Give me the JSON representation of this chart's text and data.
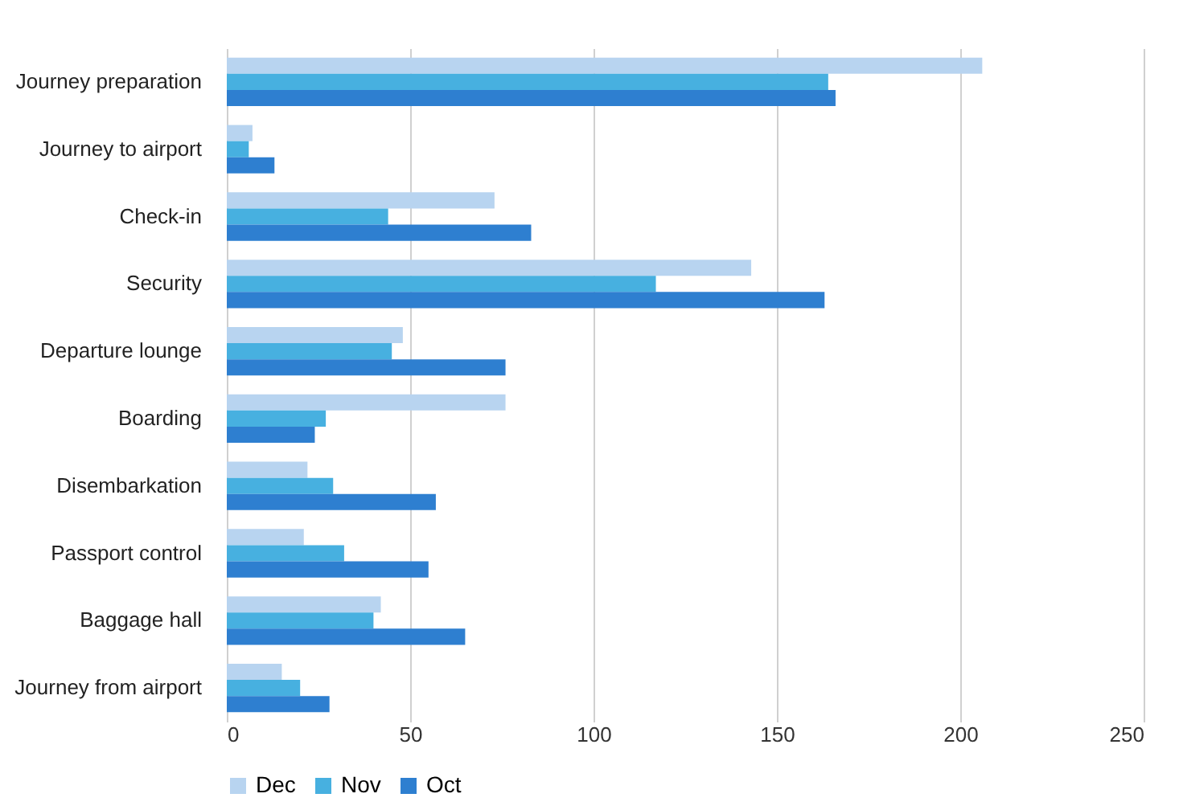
{
  "chart_data": {
    "type": "bar",
    "orientation": "horizontal",
    "categories": [
      "Journey preparation",
      "Journey to airport",
      "Check-in",
      "Security",
      "Departure lounge",
      "Boarding",
      "Disembarkation",
      "Passport control",
      "Baggage hall",
      "Journey from airport"
    ],
    "series": [
      {
        "name": "Dec",
        "color": "#b8d4f0",
        "values": [
          206,
          7,
          73,
          143,
          48,
          76,
          22,
          21,
          42,
          15
        ]
      },
      {
        "name": "Nov",
        "color": "#47b0e0",
        "values": [
          164,
          6,
          44,
          117,
          45,
          27,
          29,
          32,
          40,
          20
        ]
      },
      {
        "name": "Oct",
        "color": "#2e7fd0",
        "values": [
          166,
          13,
          83,
          163,
          76,
          24,
          57,
          55,
          65,
          28
        ]
      }
    ],
    "xlim": [
      0,
      250
    ],
    "xticks": [
      0,
      50,
      100,
      150,
      200,
      250
    ],
    "grid": "x",
    "legend": "bottom"
  }
}
